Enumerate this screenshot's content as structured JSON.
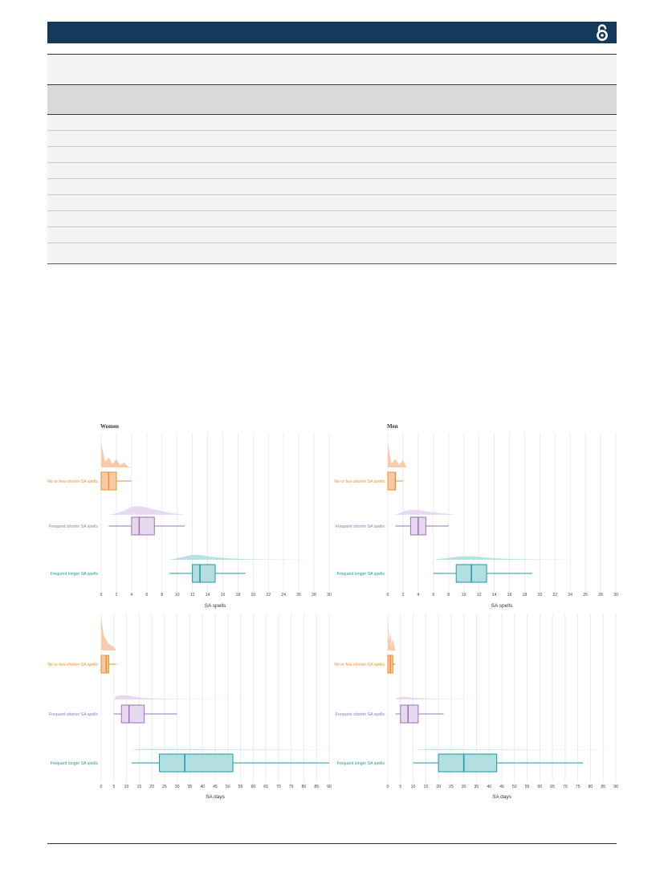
{
  "header": {
    "accent_color": "#15395b",
    "icon": "open-access-icon"
  },
  "colors": {
    "orange": "#f28e2b",
    "orange_fill": "#f8c9a6",
    "purple": "#9b72b7",
    "purple_fill": "#e6d8ef",
    "teal": "#1a9aa0",
    "teal_fill": "#b4dfe2",
    "grid": "#e6e6e6"
  },
  "chart_data": [
    {
      "type": "box",
      "panel": "Women",
      "title": "Women",
      "xlabel": "SA spells",
      "xlim": [
        0,
        30
      ],
      "ticks": [
        0,
        2,
        4,
        6,
        8,
        10,
        12,
        14,
        16,
        18,
        20,
        22,
        24,
        26,
        28,
        30
      ],
      "groups": [
        {
          "name": "No or few shorter SA spells",
          "color": "orange",
          "min": 0,
          "q1": 0,
          "median": 1,
          "q3": 2,
          "max": 4,
          "density": [
            [
              0,
              1.0
            ],
            [
              0.5,
              0.25
            ],
            [
              1,
              0.4
            ],
            [
              1.5,
              0.15
            ],
            [
              2,
              0.35
            ],
            [
              2.5,
              0.1
            ],
            [
              3,
              0.2
            ],
            [
              3.5,
              0.05
            ],
            [
              4,
              0
            ]
          ]
        },
        {
          "name": "Frequent shorter SA spells",
          "color": "purple",
          "min": 1,
          "q1": 4,
          "median": 5,
          "q3": 7,
          "max": 11,
          "density": [
            [
              1,
              0
            ],
            [
              2,
              0.15
            ],
            [
              3,
              0.4
            ],
            [
              4,
              0.75
            ],
            [
              5,
              0.85
            ],
            [
              6,
              0.7
            ],
            [
              7,
              0.5
            ],
            [
              8,
              0.35
            ],
            [
              9,
              0.2
            ],
            [
              10,
              0.1
            ],
            [
              11,
              0
            ]
          ]
        },
        {
          "name": "Frequent longer SA spells",
          "color": "teal",
          "min": 9,
          "q1": 12,
          "median": 13,
          "q3": 15,
          "max": 19,
          "density": [
            [
              9,
              0
            ],
            [
              10,
              0.25
            ],
            [
              11,
              0.5
            ],
            [
              12,
              0.8
            ],
            [
              13,
              0.75
            ],
            [
              14,
              0.55
            ],
            [
              15,
              0.4
            ],
            [
              16,
              0.3
            ],
            [
              17,
              0.2
            ],
            [
              18,
              0.15
            ],
            [
              20,
              0.08
            ],
            [
              24,
              0.03
            ],
            [
              30,
              0
            ]
          ]
        }
      ]
    },
    {
      "type": "box",
      "panel": "Men",
      "title": "Men",
      "xlabel": "SA spells",
      "xlim": [
        0,
        30
      ],
      "ticks": [
        0,
        2,
        4,
        6,
        8,
        10,
        12,
        14,
        16,
        18,
        20,
        22,
        24,
        26,
        28,
        30
      ],
      "groups": [
        {
          "name": "No or few shorter SA spells",
          "color": "orange",
          "min": 0,
          "q1": 0,
          "median": 1,
          "q3": 1,
          "max": 2,
          "density": [
            [
              0,
              1.0
            ],
            [
              0.5,
              0.15
            ],
            [
              1,
              0.35
            ],
            [
              1.5,
              0.1
            ],
            [
              2,
              0.3
            ],
            [
              2.5,
              0
            ]
          ]
        },
        {
          "name": "Frequent shorter SA spells",
          "color": "purple",
          "min": 1,
          "q1": 3,
          "median": 4,
          "q3": 5,
          "max": 8,
          "density": [
            [
              1,
              0
            ],
            [
              2,
              0.3
            ],
            [
              3,
              0.5
            ],
            [
              4,
              0.45
            ],
            [
              5,
              0.35
            ],
            [
              6,
              0.25
            ],
            [
              7,
              0.15
            ],
            [
              8,
              0.08
            ],
            [
              9,
              0
            ]
          ]
        },
        {
          "name": "Frequent longer SA spells",
          "color": "teal",
          "min": 6,
          "q1": 9,
          "median": 11,
          "q3": 13,
          "max": 19,
          "density": [
            [
              6,
              0
            ],
            [
              7,
              0.15
            ],
            [
              8,
              0.3
            ],
            [
              9,
              0.45
            ],
            [
              10,
              0.55
            ],
            [
              11,
              0.55
            ],
            [
              12,
              0.45
            ],
            [
              13,
              0.35
            ],
            [
              14,
              0.25
            ],
            [
              16,
              0.12
            ],
            [
              20,
              0.05
            ],
            [
              26,
              0
            ]
          ]
        }
      ]
    },
    {
      "type": "box",
      "panel": "Women days",
      "title": "",
      "xlabel": "SA days",
      "xlim": [
        0,
        90
      ],
      "ticks": [
        0,
        5,
        10,
        15,
        20,
        25,
        30,
        35,
        40,
        45,
        50,
        55,
        60,
        65,
        70,
        75,
        80,
        85,
        90
      ],
      "groups": [
        {
          "name": "No or few shorter SA spells",
          "color": "orange",
          "min": 0,
          "q1": 0,
          "median": 2,
          "q3": 3,
          "max": 6,
          "density": [
            [
              0,
              1.0
            ],
            [
              1,
              0.45
            ],
            [
              2,
              0.3
            ],
            [
              3,
              0.2
            ],
            [
              4,
              0.15
            ],
            [
              5,
              0.1
            ],
            [
              6,
              0
            ]
          ]
        },
        {
          "name": "Frequent shorter SA spells",
          "color": "purple",
          "min": 5,
          "q1": 8,
          "median": 11,
          "q3": 17,
          "max": 30,
          "density": [
            [
              5,
              0
            ],
            [
              6,
              0.35
            ],
            [
              8,
              0.45
            ],
            [
              11,
              0.4
            ],
            [
              14,
              0.25
            ],
            [
              18,
              0.15
            ],
            [
              24,
              0.08
            ],
            [
              30,
              0.04
            ],
            [
              50,
              0.01
            ],
            [
              60,
              0
            ]
          ]
        },
        {
          "name": "Frequent longer SA spells",
          "color": "teal",
          "min": 12,
          "q1": 23,
          "median": 33,
          "q3": 52,
          "max": 90,
          "density": [
            [
              12,
              0
            ],
            [
              14,
              0.1
            ],
            [
              18,
              0.14
            ],
            [
              24,
              0.13
            ],
            [
              32,
              0.11
            ],
            [
              42,
              0.09
            ],
            [
              55,
              0.06
            ],
            [
              70,
              0.04
            ],
            [
              85,
              0.02
            ],
            [
              90,
              0.01
            ]
          ]
        }
      ]
    },
    {
      "type": "box",
      "panel": "Men days",
      "title": "",
      "xlabel": "SA days",
      "xlim": [
        0,
        90
      ],
      "ticks": [
        0,
        5,
        10,
        15,
        20,
        25,
        30,
        35,
        40,
        45,
        50,
        55,
        60,
        65,
        70,
        75,
        80,
        85,
        90
      ],
      "groups": [
        {
          "name": "No or few shorter SA spells",
          "color": "orange",
          "min": 0,
          "q1": 0,
          "median": 1,
          "q3": 2,
          "max": 3,
          "density": [
            [
              0,
              1.0
            ],
            [
              0.5,
              0.3
            ],
            [
              1,
              0.55
            ],
            [
              1.5,
              0.15
            ],
            [
              2,
              0.35
            ],
            [
              3,
              0
            ]
          ]
        },
        {
          "name": "Frequent shorter SA spells",
          "color": "purple",
          "min": 3,
          "q1": 5,
          "median": 8,
          "q3": 12,
          "max": 22,
          "density": [
            [
              3,
              0
            ],
            [
              4,
              0.2
            ],
            [
              6,
              0.3
            ],
            [
              8,
              0.25
            ],
            [
              11,
              0.17
            ],
            [
              15,
              0.1
            ],
            [
              20,
              0.05
            ],
            [
              30,
              0.02
            ],
            [
              40,
              0
            ]
          ]
        },
        {
          "name": "Frequent longer SA spells",
          "color": "teal",
          "min": 10,
          "q1": 20,
          "median": 30,
          "q3": 43,
          "max": 77,
          "density": [
            [
              10,
              0
            ],
            [
              13,
              0.08
            ],
            [
              18,
              0.12
            ],
            [
              24,
              0.11
            ],
            [
              30,
              0.09
            ],
            [
              40,
              0.07
            ],
            [
              50,
              0.05
            ],
            [
              60,
              0.03
            ],
            [
              75,
              0.015
            ],
            [
              90,
              0.005
            ]
          ]
        }
      ]
    }
  ]
}
